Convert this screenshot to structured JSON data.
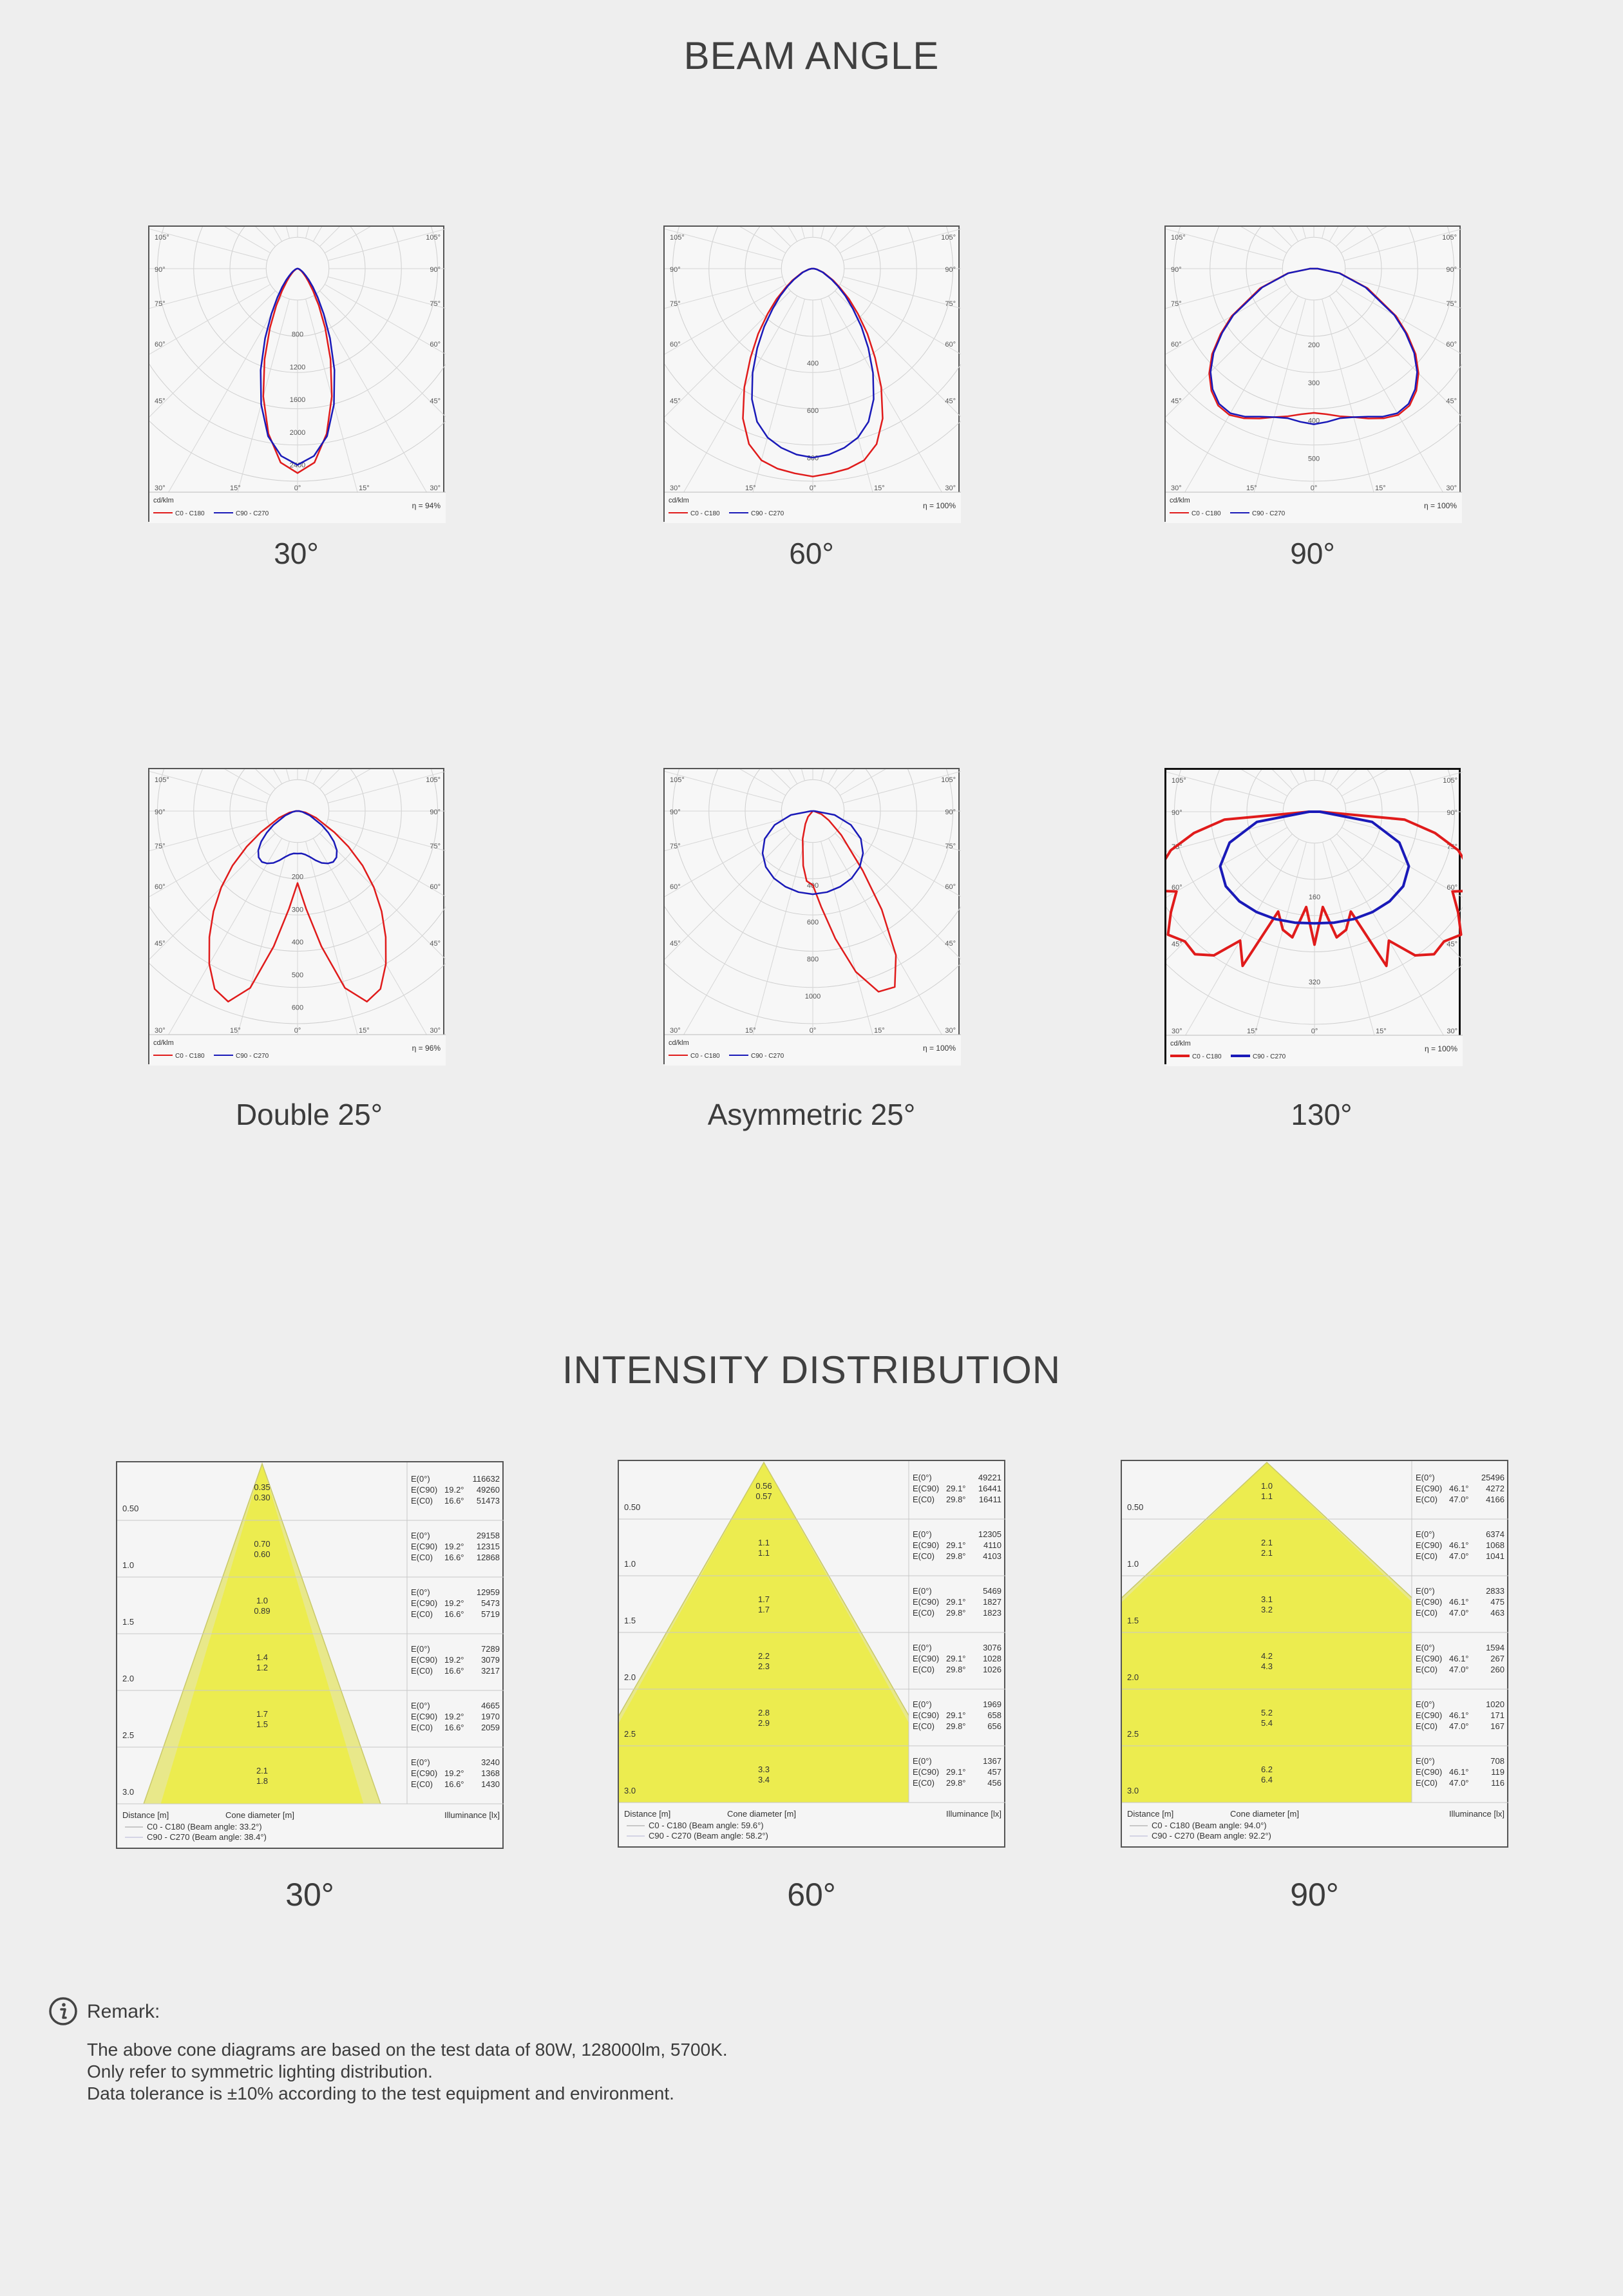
{
  "beam_angle_title": "BEAM ANGLE",
  "intensity_title": "INTENSITY DISTRIBUTION",
  "colors": {
    "c0": "#e01b1b",
    "c90": "#1a1ab8",
    "cone_fill": "#ecec4f",
    "cone_outer": "#e6e690"
  },
  "legend_unit": "cd/klm",
  "legend_c0": "C0 - C180",
  "legend_c90": "C90 - C270",
  "chart_data": [
    {
      "type": "polar",
      "caption": "30°",
      "efficiency": "η = 94%",
      "r_ticks": [
        "800",
        "1200",
        "1600",
        "2000",
        "2400"
      ],
      "r_max": 2600,
      "angle_labels_left": [
        "105°",
        "90°",
        "75°",
        "60°",
        "45°",
        "30°",
        "15°"
      ],
      "angle_labels_right": [
        "105°",
        "90°",
        "75°",
        "60°",
        "45°",
        "30°",
        "15°"
      ],
      "angle_label_bottom": "0°",
      "series": [
        {
          "name": "C0 - C180",
          "angles": [
            0,
            5,
            10,
            15,
            20,
            25,
            30,
            35,
            40,
            45,
            50,
            55,
            60,
            70,
            80,
            90
          ],
          "values": [
            2500,
            2380,
            2050,
            1620,
            1180,
            800,
            520,
            330,
            210,
            140,
            95,
            65,
            45,
            22,
            10,
            4
          ]
        },
        {
          "name": "C90 - C270",
          "angles": [
            0,
            5,
            10,
            15,
            20,
            25,
            30,
            35,
            40,
            45,
            50,
            55,
            60,
            70,
            80,
            90
          ],
          "values": [
            2400,
            2300,
            2080,
            1720,
            1320,
            940,
            640,
            430,
            290,
            195,
            130,
            90,
            62,
            32,
            14,
            5
          ]
        }
      ]
    },
    {
      "type": "polar",
      "caption": "60°",
      "efficiency": "η = 100%",
      "r_ticks": [
        "400",
        "600",
        "800"
      ],
      "r_max": 900,
      "angle_labels_left": [
        "105°",
        "90°",
        "75°",
        "60°",
        "45°",
        "30°",
        "15°"
      ],
      "angle_labels_right": [
        "105°",
        "90°",
        "75°",
        "60°",
        "45°",
        "30°",
        "15°"
      ],
      "angle_label_bottom": "0°",
      "series": [
        {
          "name": "C0 - C180",
          "angles": [
            0,
            5,
            10,
            15,
            20,
            25,
            30,
            35,
            40,
            45,
            50,
            55,
            60,
            70,
            80,
            90
          ],
          "values": [
            880,
            870,
            860,
            840,
            790,
            700,
            580,
            460,
            360,
            270,
            200,
            140,
            100,
            48,
            18,
            5
          ]
        },
        {
          "name": "C90 - C270",
          "angles": [
            0,
            5,
            10,
            15,
            20,
            25,
            30,
            35,
            40,
            45,
            50,
            55,
            60,
            70,
            80,
            90
          ],
          "values": [
            800,
            790,
            770,
            740,
            690,
            610,
            510,
            410,
            320,
            240,
            180,
            130,
            92,
            44,
            16,
            5
          ]
        }
      ]
    },
    {
      "type": "polar",
      "caption": "90°",
      "efficiency": "η = 100%",
      "r_ticks": [
        "200",
        "300",
        "400",
        "500"
      ],
      "r_max": 560,
      "angle_labels_left": [
        "105°",
        "90°",
        "75°",
        "60°",
        "45°",
        "30°",
        "15°"
      ],
      "angle_labels_right": [
        "105°",
        "90°",
        "75°",
        "60°",
        "45°",
        "30°",
        "15°"
      ],
      "angle_label_bottom": "0°",
      "series": [
        {
          "name": "C0 - C180",
          "angles": [
            0,
            5,
            10,
            15,
            20,
            25,
            30,
            35,
            40,
            45,
            50,
            55,
            60,
            70,
            80,
            90
          ],
          "values": [
            380,
            385,
            395,
            405,
            420,
            435,
            445,
            440,
            420,
            390,
            350,
            300,
            250,
            150,
            70,
            10
          ]
        },
        {
          "name": "C90 - C270",
          "angles": [
            0,
            5,
            10,
            15,
            20,
            25,
            30,
            35,
            40,
            45,
            50,
            55,
            60,
            70,
            80,
            90
          ],
          "values": [
            410,
            405,
            400,
            405,
            415,
            430,
            440,
            435,
            415,
            385,
            345,
            295,
            245,
            145,
            68,
            10
          ]
        }
      ]
    },
    {
      "type": "polar",
      "caption": "Double 25°",
      "efficiency": "η = 96%",
      "r_ticks": [
        "200",
        "300",
        "400",
        "500",
        "600"
      ],
      "r_max": 650,
      "angle_labels_left": [
        "105°",
        "90°",
        "75°",
        "60°",
        "45°",
        "30°",
        "15°"
      ],
      "angle_labels_right": [
        "105°",
        "90°",
        "75°",
        "60°",
        "45°",
        "30°",
        "15°"
      ],
      "angle_label_bottom": "0°",
      "series": [
        {
          "name": "C0 - C180",
          "angles": [
            0,
            5,
            10,
            15,
            20,
            25,
            30,
            35,
            40,
            45,
            50,
            55,
            60,
            70,
            80,
            90
          ],
          "values": [
            220,
            300,
            420,
            560,
            620,
            600,
            540,
            470,
            400,
            330,
            260,
            190,
            130,
            60,
            25,
            5
          ]
        },
        {
          "name": "C90 - C270",
          "angles": [
            0,
            5,
            10,
            15,
            20,
            25,
            30,
            35,
            40,
            45,
            50,
            55,
            60,
            70,
            80,
            90
          ],
          "values": [
            130,
            130,
            135,
            145,
            160,
            175,
            185,
            190,
            185,
            170,
            145,
            115,
            85,
            40,
            15,
            5
          ]
        }
      ]
    },
    {
      "type": "polar",
      "caption": "Asymmetric 25°",
      "efficiency": "η = 100%",
      "r_ticks": [
        "400",
        "600",
        "800",
        "1000"
      ],
      "r_max": 1150,
      "angle_labels_left": [
        "105°",
        "90°",
        "75°",
        "60°",
        "45°",
        "30°",
        "15°"
      ],
      "angle_labels_right": [
        "105°",
        "90°",
        "75°",
        "60°",
        "45°",
        "30°",
        "15°"
      ],
      "angle_label_bottom": "0°",
      "series": [
        {
          "name": "C0 - C180",
          "angles": [
            -40,
            -30,
            -20,
            -10,
            -5,
            0,
            5,
            10,
            15,
            20,
            25,
            30,
            35,
            40,
            50,
            60,
            70,
            90
          ],
          "values": [
            40,
            80,
            160,
            300,
            380,
            400,
            520,
            700,
            900,
            1040,
            1050,
            900,
            650,
            420,
            200,
            100,
            50,
            5
          ]
        },
        {
          "name": "C90 - C270",
          "angles": [
            0,
            10,
            20,
            30,
            40,
            50,
            60,
            70,
            80,
            90
          ],
          "values": [
            450,
            445,
            435,
            420,
            395,
            355,
            300,
            220,
            120,
            10
          ]
        }
      ]
    },
    {
      "type": "polar",
      "caption": "130°",
      "efficiency": "η = 100%",
      "r_ticks": [
        "160",
        "320"
      ],
      "r_max": 400,
      "angle_labels_left": [
        "105°",
        "90°",
        "75°",
        "60°",
        "45°",
        "30°",
        "15°"
      ],
      "angle_labels_right": [
        "105°",
        "90°",
        "75°",
        "60°",
        "45°",
        "30°",
        "15°"
      ],
      "angle_label_bottom": "0°",
      "series": [
        {
          "name": "C0 - C180",
          "angles": [
            0,
            5,
            10,
            15,
            20,
            25,
            30,
            35,
            40,
            45,
            50,
            55,
            60,
            65,
            70,
            75,
            80,
            85,
            90
          ],
          "values": [
            250,
            180,
            240,
            230,
            200,
            320,
            280,
            330,
            350,
            345,
            360,
            330,
            300,
            350,
            310,
            280,
            230,
            170,
            10
          ]
        },
        {
          "name": "C90 - C270",
          "angles": [
            0,
            10,
            20,
            30,
            40,
            50,
            60,
            70,
            80,
            90
          ],
          "values": [
            210,
            212,
            215,
            218,
            220,
            218,
            205,
            170,
            110,
            10
          ]
        }
      ]
    },
    {
      "type": "table",
      "caption": "30°",
      "rows": [
        {
          "distance": "0.50",
          "c0": "0.35",
          "c90": "0.30",
          "e0": "116632",
          "ec90_angle": "19.2°",
          "ec90": "49260",
          "ec0_angle": "16.6°",
          "ec0": "51473"
        },
        {
          "distance": "1.0",
          "c0": "0.70",
          "c90": "0.60",
          "e0": "29158",
          "ec90_angle": "19.2°",
          "ec90": "12315",
          "ec0_angle": "16.6°",
          "ec0": "12868"
        },
        {
          "distance": "1.5",
          "c0": "1.0",
          "c90": "0.89",
          "e0": "12959",
          "ec90_angle": "19.2°",
          "ec90": "5473",
          "ec0_angle": "16.6°",
          "ec0": "5719"
        },
        {
          "distance": "2.0",
          "c0": "1.4",
          "c90": "1.2",
          "e0": "7289",
          "ec90_angle": "19.2°",
          "ec90": "3079",
          "ec0_angle": "16.6°",
          "ec0": "3217"
        },
        {
          "distance": "2.5",
          "c0": "1.7",
          "c90": "1.5",
          "e0": "4665",
          "ec90_angle": "19.2°",
          "ec90": "1970",
          "ec0_angle": "16.6°",
          "ec0": "2059"
        },
        {
          "distance": "3.0",
          "c0": "2.1",
          "c90": "1.8",
          "e0": "3240",
          "ec90_angle": "19.2°",
          "ec90": "1368",
          "ec0_angle": "16.6°",
          "ec0": "1430"
        }
      ],
      "beam_c0": 33.2,
      "beam_c90": 38.4,
      "legend_c0": "C0 - C180 (Beam angle: 33.2°)",
      "legend_c90": "C90 - C270 (Beam angle: 38.4°)"
    },
    {
      "type": "table",
      "caption": "60°",
      "rows": [
        {
          "distance": "0.50",
          "c0": "0.56",
          "c90": "0.57",
          "e0": "49221",
          "ec90_angle": "29.1°",
          "ec90": "16441",
          "ec0_angle": "29.8°",
          "ec0": "16411"
        },
        {
          "distance": "1.0",
          "c0": "1.1",
          "c90": "1.1",
          "e0": "12305",
          "ec90_angle": "29.1°",
          "ec90": "4110",
          "ec0_angle": "29.8°",
          "ec0": "4103"
        },
        {
          "distance": "1.5",
          "c0": "1.7",
          "c90": "1.7",
          "e0": "5469",
          "ec90_angle": "29.1°",
          "ec90": "1827",
          "ec0_angle": "29.8°",
          "ec0": "1823"
        },
        {
          "distance": "2.0",
          "c0": "2.2",
          "c90": "2.3",
          "e0": "3076",
          "ec90_angle": "29.1°",
          "ec90": "1028",
          "ec0_angle": "29.8°",
          "ec0": "1026"
        },
        {
          "distance": "2.5",
          "c0": "2.8",
          "c90": "2.9",
          "e0": "1969",
          "ec90_angle": "29.1°",
          "ec90": "658",
          "ec0_angle": "29.8°",
          "ec0": "656"
        },
        {
          "distance": "3.0",
          "c0": "3.3",
          "c90": "3.4",
          "e0": "1367",
          "ec90_angle": "29.1°",
          "ec90": "457",
          "ec0_angle": "29.8°",
          "ec0": "456"
        }
      ],
      "beam_c0": 59.6,
      "beam_c90": 58.2,
      "legend_c0": "C0 - C180 (Beam angle: 59.6°)",
      "legend_c90": "C90 - C270 (Beam angle: 58.2°)"
    },
    {
      "type": "table",
      "caption": "90°",
      "rows": [
        {
          "distance": "0.50",
          "c0": "1.0",
          "c90": "1.1",
          "e0": "25496",
          "ec90_angle": "46.1°",
          "ec90": "4272",
          "ec0_angle": "47.0°",
          "ec0": "4166"
        },
        {
          "distance": "1.0",
          "c0": "2.1",
          "c90": "2.1",
          "e0": "6374",
          "ec90_angle": "46.1°",
          "ec90": "1068",
          "ec0_angle": "47.0°",
          "ec0": "1041"
        },
        {
          "distance": "1.5",
          "c0": "3.1",
          "c90": "3.2",
          "e0": "2833",
          "ec90_angle": "46.1°",
          "ec90": "475",
          "ec0_angle": "47.0°",
          "ec0": "463"
        },
        {
          "distance": "2.0",
          "c0": "4.2",
          "c90": "4.3",
          "e0": "1594",
          "ec90_angle": "46.1°",
          "ec90": "267",
          "ec0_angle": "47.0°",
          "ec0": "260"
        },
        {
          "distance": "2.5",
          "c0": "5.2",
          "c90": "5.4",
          "e0": "1020",
          "ec90_angle": "46.1°",
          "ec90": "171",
          "ec0_angle": "47.0°",
          "ec0": "167"
        },
        {
          "distance": "3.0",
          "c0": "6.2",
          "c90": "6.4",
          "e0": "708",
          "ec90_angle": "46.1°",
          "ec90": "119",
          "ec0_angle": "47.0°",
          "ec0": "116"
        }
      ],
      "beam_c0": 94.0,
      "beam_c90": 92.2,
      "legend_c0": "C0 - C180 (Beam angle: 94.0°)",
      "legend_c90": "C90 - C270 (Beam angle: 92.2°)"
    }
  ],
  "cone_labels": {
    "distance": "Distance [m]",
    "cone": "Cone diameter [m]",
    "illuminance": "Illuminance [lx]",
    "e0": "E(0°)",
    "ec90": "E(C90)",
    "ec0": "E(C0)"
  },
  "remark": {
    "title": "Remark:",
    "lines": [
      "The above cone diagrams are based on the test data of 80W, 128000lm, 5700K.",
      "Only refer to symmetric lighting distribution.",
      "Data tolerance is ±10% according to the test equipment and environment."
    ]
  }
}
